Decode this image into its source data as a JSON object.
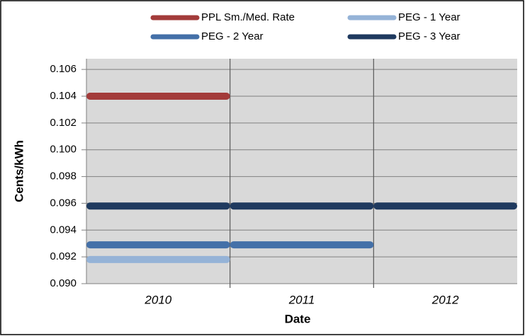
{
  "chart_data": {
    "type": "segment",
    "x_label": "Date",
    "y_label": "Cents/kWh",
    "categories": [
      "2010",
      "2011",
      "2012"
    ],
    "series": [
      {
        "name": "PPL Sm./Med. Rate",
        "color": "#a33b3a",
        "values": [
          0.104,
          null,
          null
        ]
      },
      {
        "name": "PEG - 1 Year",
        "color": "#95b3d7",
        "values": [
          0.0918,
          null,
          null
        ]
      },
      {
        "name": "PEG - 2 Year",
        "color": "#4470a8",
        "values": [
          0.0929,
          0.0929,
          null
        ]
      },
      {
        "name": "PEG - 3 Year",
        "color": "#1f3a5f",
        "values": [
          0.0958,
          0.0958,
          0.0958
        ]
      }
    ],
    "ylim": [
      0.09,
      0.1068
    ],
    "yticks": [
      {
        "value": 0.09,
        "label": "0.090"
      },
      0.092,
      0.094,
      0.096,
      0.098,
      {
        "value": 0.1,
        "label": "0.100"
      },
      0.102,
      0.104,
      0.106
    ],
    "grid": true,
    "legend": "top"
  }
}
